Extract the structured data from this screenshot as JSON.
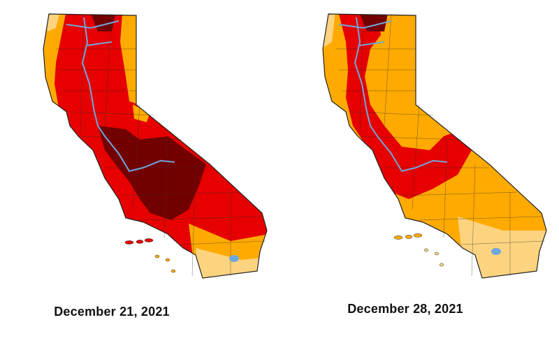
{
  "maps": [
    {
      "date_label": "December 21, 2021"
    },
    {
      "date_label": "December 28, 2021"
    }
  ],
  "colors": {
    "abnormally_dry": "#FFE37F",
    "moderate": "#FCD37F",
    "severe": "#FFAA00",
    "extreme": "#E60000",
    "exceptional": "#730000",
    "water": "#6FA8DC",
    "county_border": "#333333"
  }
}
